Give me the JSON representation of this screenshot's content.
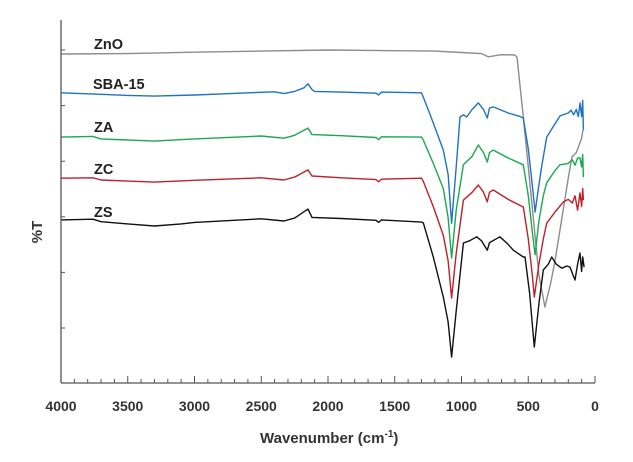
{
  "chart_data": {
    "type": "line",
    "title": "",
    "xlabel": "Wavenumber (cm",
    "xlabel_sup": "-1",
    "xlabel_close": ")",
    "ylabel": "%T",
    "xlim": [
      4000,
      0
    ],
    "ylim": [
      0,
      100
    ],
    "x_ticks": [
      "4000",
      "3500",
      "3000",
      "2500",
      "2000",
      "1500",
      "1000",
      "500",
      "0"
    ],
    "x_tick_values": [
      4000,
      3500,
      3000,
      2500,
      2000,
      1500,
      1000,
      500,
      0
    ],
    "y_tick_count": 6,
    "grid": false,
    "legend": "inline labels at left of each curve",
    "series": [
      {
        "name": "ZnO",
        "color": "#8c8c8c",
        "points": [
          [
            4000,
            91.4
          ],
          [
            3500,
            91.5
          ],
          [
            3000,
            91.9
          ],
          [
            2500,
            92.2
          ],
          [
            2000,
            92.5
          ],
          [
            1500,
            92.3
          ],
          [
            1200,
            92.2
          ],
          [
            1000,
            91.8
          ],
          [
            850,
            91.5
          ],
          [
            800,
            90.6
          ],
          [
            700,
            91.2
          ],
          [
            600,
            91.1
          ],
          [
            584,
            90.5
          ],
          [
            540,
            75
          ],
          [
            500,
            60
          ],
          [
            460,
            45
          ],
          [
            420,
            30
          ],
          [
            375,
            21.1
          ],
          [
            330,
            28
          ],
          [
            300,
            34
          ],
          [
            262,
            42.5
          ],
          [
            230,
            50
          ],
          [
            200,
            57
          ],
          [
            172,
            62.8
          ],
          [
            140,
            64
          ],
          [
            120,
            66
          ],
          [
            100,
            68
          ],
          [
            90,
            70.3
          ]
        ]
      },
      {
        "name": "SBA-15",
        "color": "#1f73c0",
        "points": [
          [
            4000,
            80.6
          ],
          [
            3700,
            80.2
          ],
          [
            3500,
            79.9
          ],
          [
            3300,
            79.7
          ],
          [
            3000,
            80
          ],
          [
            2800,
            80.3
          ],
          [
            2400,
            80.9
          ],
          [
            2330,
            80.4
          ],
          [
            2250,
            81
          ],
          [
            2180,
            82
          ],
          [
            2150,
            83.1
          ],
          [
            2120,
            81.5
          ],
          [
            2100,
            81
          ],
          [
            1900,
            80.8
          ],
          [
            1640,
            80.5
          ],
          [
            1620,
            80
          ],
          [
            1600,
            80.8
          ],
          [
            1300,
            80.6
          ],
          [
            1286,
            79.4
          ],
          [
            1250,
            76
          ],
          [
            1211,
            72.2
          ],
          [
            1136,
            64.7
          ],
          [
            1100,
            58
          ],
          [
            1074,
            44.4
          ],
          [
            1040,
            60
          ],
          [
            1011,
            73.9
          ],
          [
            986,
            74.5
          ],
          [
            961,
            73.9
          ],
          [
            920,
            76
          ],
          [
            874,
            77.8
          ],
          [
            835,
            76
          ],
          [
            807,
            73.6
          ],
          [
            790,
            76.4
          ],
          [
            762,
            76.7
          ],
          [
            650,
            75
          ],
          [
            560,
            74
          ],
          [
            537,
            73.6
          ],
          [
            500,
            65
          ],
          [
            470,
            55
          ],
          [
            449,
            47.5
          ],
          [
            420,
            55
          ],
          [
            400,
            60
          ],
          [
            362,
            68.3
          ],
          [
            300,
            72
          ],
          [
            262,
            74.2
          ],
          [
            200,
            75
          ],
          [
            180,
            75.8
          ],
          [
            160,
            74.5
          ],
          [
            140,
            76
          ],
          [
            125,
            74
          ],
          [
            112,
            77.8
          ],
          [
            100,
            74
          ],
          [
            92,
            78.5
          ],
          [
            87,
            70.3
          ]
        ]
      },
      {
        "name": "ZA",
        "color": "#1aa84f",
        "points": [
          [
            4000,
            68.3
          ],
          [
            3760,
            68.5
          ],
          [
            3700,
            67.8
          ],
          [
            3300,
            67.2
          ],
          [
            3000,
            67.8
          ],
          [
            2500,
            68.6
          ],
          [
            2330,
            68
          ],
          [
            2250,
            68.8
          ],
          [
            2150,
            70.8
          ],
          [
            2120,
            69
          ],
          [
            1900,
            68.7
          ],
          [
            1640,
            68.2
          ],
          [
            1620,
            67.6
          ],
          [
            1600,
            68.4
          ],
          [
            1300,
            68.3
          ],
          [
            1286,
            67.5
          ],
          [
            1211,
            61
          ],
          [
            1136,
            54
          ],
          [
            1100,
            46
          ],
          [
            1074,
            34.7
          ],
          [
            1040,
            48
          ],
          [
            986,
            60.6
          ],
          [
            920,
            63
          ],
          [
            874,
            66.1
          ],
          [
            835,
            64
          ],
          [
            807,
            61.4
          ],
          [
            790,
            64
          ],
          [
            762,
            64.7
          ],
          [
            650,
            62.5
          ],
          [
            537,
            60.6
          ],
          [
            500,
            52
          ],
          [
            470,
            42
          ],
          [
            449,
            35.6
          ],
          [
            420,
            45
          ],
          [
            387,
            52
          ],
          [
            362,
            55.6
          ],
          [
            300,
            59
          ],
          [
            262,
            60.6
          ],
          [
            200,
            61
          ],
          [
            170,
            62
          ],
          [
            150,
            60.5
          ],
          [
            130,
            62.5
          ],
          [
            112,
            62.5
          ],
          [
            100,
            60
          ],
          [
            92,
            63.5
          ],
          [
            87,
            57.2
          ]
        ]
      },
      {
        "name": "ZC",
        "color": "#c0202a",
        "points": [
          [
            4000,
            56.9
          ],
          [
            3760,
            57
          ],
          [
            3700,
            56.4
          ],
          [
            3300,
            55.8
          ],
          [
            3000,
            56.3
          ],
          [
            2500,
            57
          ],
          [
            2330,
            56.4
          ],
          [
            2250,
            57.2
          ],
          [
            2150,
            59.2
          ],
          [
            2120,
            57.5
          ],
          [
            1900,
            57
          ],
          [
            1640,
            56.5
          ],
          [
            1620,
            55.9
          ],
          [
            1600,
            56.6
          ],
          [
            1300,
            56.9
          ],
          [
            1286,
            56
          ],
          [
            1211,
            49
          ],
          [
            1136,
            41
          ],
          [
            1100,
            34
          ],
          [
            1074,
            23.6
          ],
          [
            1040,
            36
          ],
          [
            986,
            50.8
          ],
          [
            920,
            53
          ],
          [
            874,
            55
          ],
          [
            835,
            53
          ],
          [
            807,
            50.3
          ],
          [
            790,
            53
          ],
          [
            762,
            53.6
          ],
          [
            650,
            51
          ],
          [
            537,
            48.9
          ],
          [
            500,
            40
          ],
          [
            470,
            30
          ],
          [
            455,
            23.9
          ],
          [
            420,
            33
          ],
          [
            387,
            40
          ],
          [
            362,
            44.4
          ],
          [
            300,
            47.5
          ],
          [
            237,
            50.3
          ],
          [
            200,
            51
          ],
          [
            170,
            50
          ],
          [
            150,
            52
          ],
          [
            130,
            48
          ],
          [
            112,
            52.8
          ],
          [
            100,
            49
          ],
          [
            92,
            54
          ],
          [
            87,
            50.8
          ]
        ]
      },
      {
        "name": "ZS",
        "color": "#111111",
        "points": [
          [
            4000,
            45.3
          ],
          [
            3760,
            45.5
          ],
          [
            3700,
            44.8
          ],
          [
            3500,
            44.2
          ],
          [
            3300,
            43.6
          ],
          [
            3100,
            44.2
          ],
          [
            3000,
            44.6
          ],
          [
            2500,
            45.6
          ],
          [
            2330,
            45
          ],
          [
            2250,
            45.8
          ],
          [
            2150,
            48.3
          ],
          [
            2120,
            46
          ],
          [
            1900,
            45.7
          ],
          [
            1640,
            45.2
          ],
          [
            1620,
            44.6
          ],
          [
            1600,
            45.3
          ],
          [
            1300,
            44.7
          ],
          [
            1286,
            44.5
          ],
          [
            1211,
            35
          ],
          [
            1136,
            23.9
          ],
          [
            1100,
            17
          ],
          [
            1074,
            7.2
          ],
          [
            1040,
            20
          ],
          [
            986,
            38.9
          ],
          [
            940,
            39.5
          ],
          [
            886,
            40.6
          ],
          [
            850,
            39.5
          ],
          [
            807,
            36.9
          ],
          [
            790,
            39
          ],
          [
            712,
            40.6
          ],
          [
            650,
            38.5
          ],
          [
            612,
            36.9
          ],
          [
            537,
            35
          ],
          [
            524,
            35
          ],
          [
            490,
            25
          ],
          [
            455,
            10
          ],
          [
            420,
            22
          ],
          [
            387,
            31.4
          ],
          [
            350,
            33
          ],
          [
            324,
            35
          ],
          [
            290,
            33
          ],
          [
            249,
            31.9
          ],
          [
            210,
            32.5
          ],
          [
            187,
            32.2
          ],
          [
            165,
            30
          ],
          [
            150,
            28.6
          ],
          [
            130,
            33
          ],
          [
            112,
            36.1
          ],
          [
            100,
            31
          ],
          [
            92,
            35
          ],
          [
            82,
            32.2
          ]
        ]
      }
    ]
  }
}
